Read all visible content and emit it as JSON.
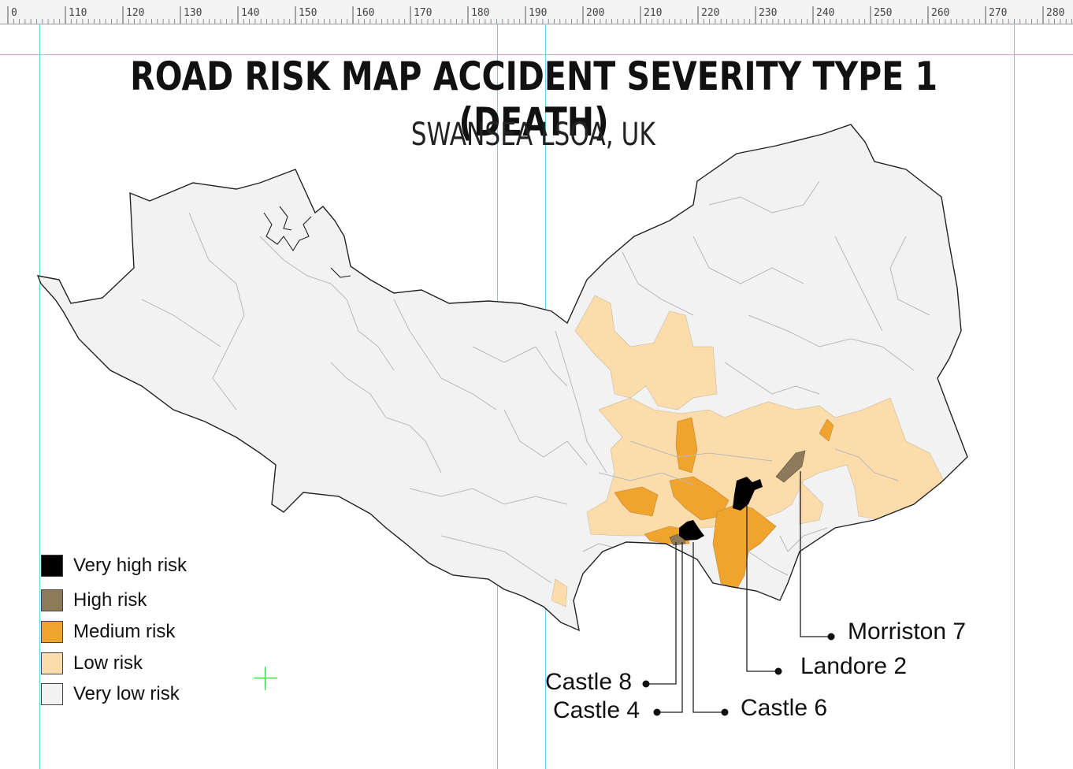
{
  "ruler": {
    "labels": [
      "0",
      "110",
      "120",
      "130",
      "140",
      "150",
      "160",
      "170",
      "180",
      "190",
      "200",
      "210",
      "220",
      "230",
      "240",
      "250",
      "260",
      "270",
      "280"
    ]
  },
  "map": {
    "title": "ROAD RISK MAP ACCIDENT SEVERITY TYPE 1 (DEATH)",
    "subtitle": "SWANSEA LSOA, UK"
  },
  "legend": {
    "items": [
      {
        "label": "Very high risk",
        "color": "#000000"
      },
      {
        "label": "High risk",
        "color": "#8c7a5b"
      },
      {
        "label": "Medium risk",
        "color": "#f0a42d"
      },
      {
        "label": "Low risk",
        "color": "#fcdcaa"
      },
      {
        "label": "Very low risk",
        "color": "#f2f2f2"
      }
    ]
  },
  "callouts": {
    "morriston": "Morriston 7",
    "landore": "Landore 2",
    "castle8": "Castle 8",
    "castle4": "Castle 4",
    "castle6": "Castle 6"
  },
  "colors": {
    "guide": "#5fd6e8",
    "boundary": "#b8b8b8",
    "coast": "#222222"
  }
}
